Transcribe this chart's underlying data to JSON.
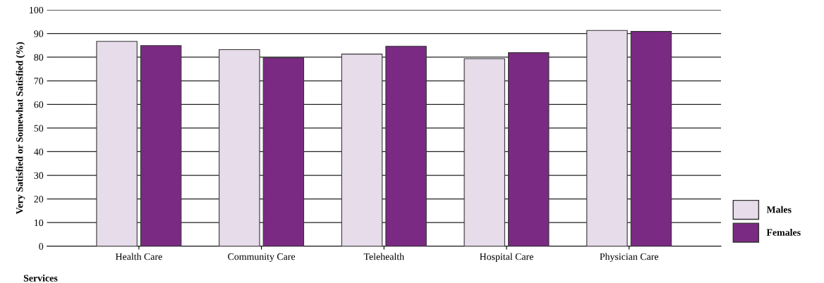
{
  "chart_data": {
    "type": "bar",
    "xlabel": "Services",
    "ylabel": "Very Satisfied or Somewhat Satisfied (%)",
    "categories": [
      "Health Care",
      "Community Care",
      "Telehealth",
      "Hospital Care",
      "Physician Care"
    ],
    "series": [
      {
        "name": "Males",
        "color": "#e6dcea",
        "values": [
          86.7,
          83.2,
          81.3,
          79.3,
          91.3
        ]
      },
      {
        "name": "Females",
        "color": "#7a2a82",
        "values": [
          84.9,
          79.8,
          84.6,
          81.9,
          90.9
        ]
      }
    ],
    "ylim": [
      0,
      100
    ],
    "yticks": [
      0,
      10,
      20,
      30,
      40,
      50,
      60,
      70,
      80,
      90,
      100
    ],
    "grid": "y",
    "legend": "bottom right"
  }
}
